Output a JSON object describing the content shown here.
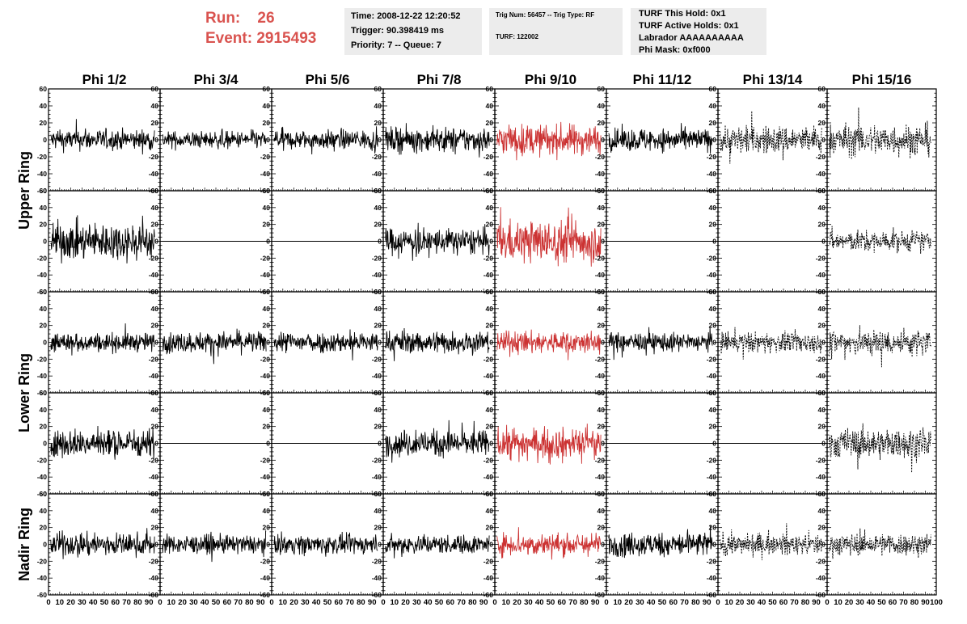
{
  "header": {
    "run_label": "Run:",
    "run_value": "26",
    "event_label": "Event:",
    "event_value": "2915493",
    "time": "Time: 2008-12-22 12:20:52",
    "trigger": "Trigger: 90.398419 ms",
    "priority": "Priority: 7 -- Queue: 7",
    "trig_num": "Trig Num: 56457 -- Trig Type: RF",
    "turf": "TURF: 122002",
    "turf_this_hold": "TURF This Hold: 0x1",
    "turf_active_holds": "TURF Active Holds: 0x1",
    "labrador": "Labrador AAAAAAAAAA",
    "phi_mask": "Phi Mask: 0xf000"
  },
  "colors": {
    "accent": "#d9534f",
    "trace": "#000000",
    "highlight_trace": "#cc3333"
  },
  "chart_data": {
    "type": "line",
    "column_labels": [
      "Phi 1/2",
      "Phi 3/4",
      "Phi 5/6",
      "Phi 7/8",
      "Phi 9/10",
      "Phi 11/12",
      "Phi 13/14",
      "Phi 15/16"
    ],
    "row_labels": [
      "Upper Ring",
      "Lower Ring",
      "Nadir Ring"
    ],
    "xlim": [
      0,
      100
    ],
    "ylim": [
      -60,
      60
    ],
    "x_ticks": [
      "0",
      "10",
      "20",
      "30",
      "40",
      "50",
      "60",
      "70",
      "80",
      "90",
      "100"
    ],
    "y_ticks": [
      "60",
      "40",
      "20",
      "0",
      "-20",
      "-40",
      "-60"
    ],
    "panel_rows": [
      {
        "ring": "Upper Ring",
        "amplitude": [
          11,
          9,
          10,
          13,
          16,
          12,
          15,
          17
        ],
        "dashed": [
          false,
          false,
          false,
          false,
          false,
          false,
          true,
          true
        ]
      },
      {
        "ring": "Upper Ring",
        "amplitude": [
          20,
          0,
          0,
          14,
          22,
          0,
          0,
          11
        ],
        "dashed": [
          false,
          false,
          false,
          false,
          false,
          false,
          false,
          true
        ]
      },
      {
        "ring": "Lower Ring",
        "amplitude": [
          10,
          11,
          11,
          12,
          12,
          10,
          11,
          14
        ],
        "dashed": [
          false,
          false,
          false,
          false,
          false,
          false,
          true,
          true
        ]
      },
      {
        "ring": "Lower Ring",
        "amplitude": [
          15,
          0,
          0,
          14,
          16,
          0,
          0,
          16
        ],
        "dashed": [
          false,
          false,
          false,
          false,
          false,
          false,
          false,
          true
        ]
      },
      {
        "ring": "Nadir Ring",
        "amplitude": [
          12,
          10,
          10,
          10,
          12,
          13,
          11,
          12
        ],
        "dashed": [
          false,
          false,
          false,
          false,
          false,
          false,
          true,
          true
        ]
      }
    ],
    "highlight_column": "Phi 9/10"
  }
}
